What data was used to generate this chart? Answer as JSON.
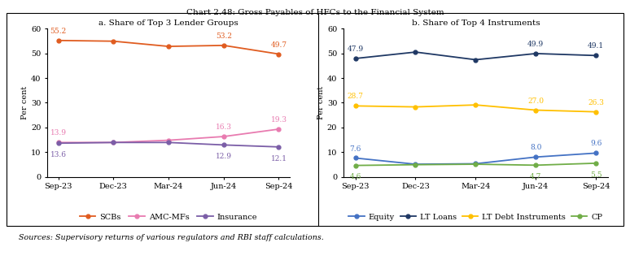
{
  "title": "Chart 2.48: Gross Payables of HFCs to the Financial System",
  "source_text": "Sources: Supervisory returns of various regulators and RBI staff calculations.",
  "x_labels": [
    "Sep-23",
    "Dec-23",
    "Mar-24",
    "Jun-24",
    "Sep-24"
  ],
  "panel_a": {
    "title": "a. Share of Top 3 Lender Groups",
    "ylabel": "Per cent",
    "ylim": [
      0,
      60
    ],
    "yticks": [
      0,
      10,
      20,
      30,
      40,
      50,
      60
    ],
    "series_order": [
      "SCBs",
      "AMC-MFs",
      "Insurance"
    ],
    "series": {
      "SCBs": {
        "values": [
          55.2,
          54.9,
          52.8,
          53.2,
          49.7
        ],
        "color": "#e05c20",
        "label": "SCBs",
        "annotations": [
          55.2,
          null,
          null,
          53.2,
          49.7
        ],
        "ann_dy": [
          5,
          0,
          0,
          5,
          5
        ],
        "ann_above": [
          true,
          false,
          false,
          true,
          true
        ]
      },
      "AMC-MFs": {
        "values": [
          13.9,
          13.9,
          14.8,
          16.3,
          19.3
        ],
        "color": "#e87bb0",
        "label": "AMC-MFs",
        "annotations": [
          13.9,
          null,
          null,
          16.3,
          19.3
        ],
        "ann_dy": [
          5,
          0,
          0,
          5,
          5
        ],
        "ann_above": [
          true,
          false,
          false,
          true,
          true
        ]
      },
      "Insurance": {
        "values": [
          13.6,
          13.9,
          13.9,
          12.9,
          12.1
        ],
        "color": "#7b5ea7",
        "label": "Insurance",
        "annotations": [
          13.6,
          null,
          null,
          12.9,
          12.1
        ],
        "ann_dy": [
          -7,
          0,
          0,
          -7,
          -7
        ],
        "ann_above": [
          false,
          false,
          false,
          false,
          false
        ]
      }
    }
  },
  "panel_b": {
    "title": "b. Share of Top 4 Instruments",
    "ylabel": "Per cent",
    "ylim": [
      0,
      60
    ],
    "yticks": [
      0,
      10,
      20,
      30,
      40,
      50,
      60
    ],
    "series_order": [
      "Equity",
      "LT Loans",
      "LT Debt Instruments",
      "CP"
    ],
    "series": {
      "Equity": {
        "values": [
          7.6,
          5.1,
          5.3,
          8.0,
          9.6
        ],
        "color": "#4472c4",
        "label": "Equity",
        "annotations": [
          7.6,
          null,
          null,
          8.0,
          9.6
        ],
        "ann_above": [
          true,
          false,
          false,
          true,
          true
        ]
      },
      "LT Loans": {
        "values": [
          47.9,
          50.5,
          47.4,
          49.9,
          49.1
        ],
        "color": "#1f3864",
        "label": "LT Loans",
        "annotations": [
          47.9,
          null,
          null,
          49.9,
          49.1
        ],
        "ann_above": [
          true,
          false,
          false,
          true,
          true
        ]
      },
      "LT Debt Instruments": {
        "values": [
          28.7,
          28.3,
          29.1,
          27.0,
          26.3
        ],
        "color": "#ffc000",
        "label": "LT Debt Instruments",
        "annotations": [
          28.7,
          null,
          null,
          27.0,
          26.3
        ],
        "ann_above": [
          true,
          false,
          false,
          true,
          true
        ]
      },
      "CP": {
        "values": [
          4.6,
          4.9,
          5.1,
          4.7,
          5.5
        ],
        "color": "#70ad47",
        "label": "CP",
        "annotations": [
          4.6,
          null,
          null,
          4.7,
          5.5
        ],
        "ann_above": [
          false,
          false,
          false,
          false,
          false
        ]
      }
    }
  }
}
